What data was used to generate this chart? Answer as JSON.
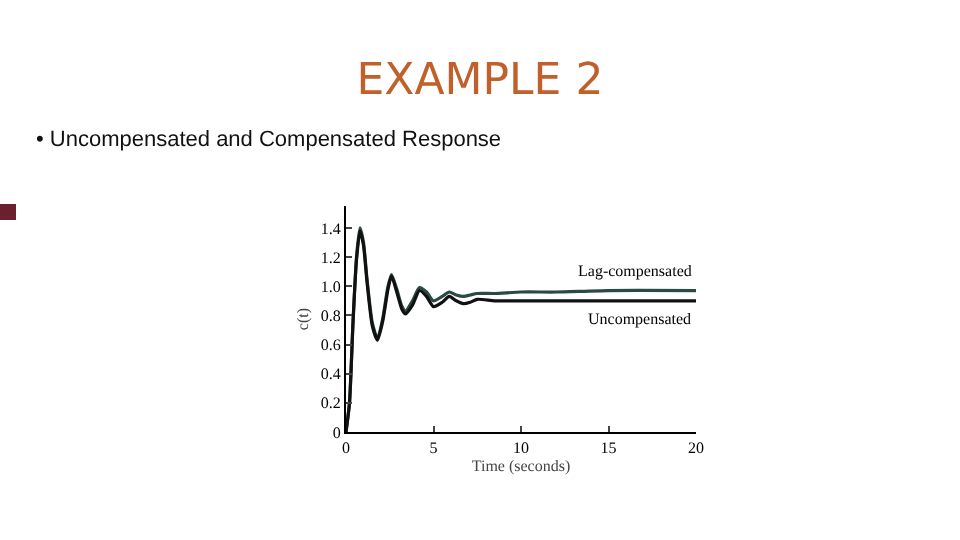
{
  "chart_data": {
    "type": "line",
    "title": "EXAMPLE 2",
    "subtitle": "• Uncompensated and Compensated Response",
    "xlabel": "Time (seconds)",
    "ylabel": "c(t)",
    "series": [
      {
        "name": "Lag-compensated",
        "color": "#2a4a44",
        "x": [
          0,
          0.2,
          0.4,
          0.6,
          0.8,
          1.0,
          1.2,
          1.5,
          1.8,
          2.1,
          2.4,
          2.6,
          2.9,
          3.2,
          3.4,
          3.8,
          4.2,
          4.6,
          5.0,
          5.5,
          5.9,
          6.3,
          6.7,
          7.1,
          7.5,
          8.5,
          10,
          12,
          15,
          20
        ],
        "values": [
          0,
          0.2,
          0.75,
          1.2,
          1.4,
          1.3,
          1.05,
          0.75,
          0.64,
          0.78,
          1.0,
          1.08,
          0.98,
          0.86,
          0.83,
          0.9,
          0.99,
          0.96,
          0.9,
          0.93,
          0.96,
          0.94,
          0.93,
          0.94,
          0.95,
          0.95,
          0.96,
          0.96,
          0.97,
          0.97
        ]
      },
      {
        "name": "Uncompensated",
        "color": "#111111",
        "x": [
          0,
          0.2,
          0.4,
          0.6,
          0.8,
          1.0,
          1.2,
          1.5,
          1.8,
          2.1,
          2.4,
          2.6,
          2.9,
          3.2,
          3.4,
          3.8,
          4.2,
          4.6,
          5.0,
          5.5,
          5.9,
          6.3,
          6.7,
          7.1,
          7.5,
          8.5,
          10,
          12,
          15,
          20
        ],
        "values": [
          0,
          0.2,
          0.75,
          1.18,
          1.38,
          1.28,
          1.03,
          0.73,
          0.63,
          0.76,
          0.98,
          1.07,
          0.96,
          0.84,
          0.81,
          0.87,
          0.97,
          0.93,
          0.86,
          0.89,
          0.93,
          0.9,
          0.88,
          0.89,
          0.91,
          0.9,
          0.9,
          0.9,
          0.9,
          0.9
        ]
      }
    ],
    "xlim": [
      0,
      20
    ],
    "xticks": [
      0,
      5,
      10,
      15,
      20
    ],
    "ylim": [
      0,
      1.55
    ],
    "yticks": [
      0,
      0.2,
      0.4,
      0.6,
      {
        "value": 0.8,
        "label": "0.8"
      },
      {
        "value": 1,
        "label": "1.0"
      },
      1.2,
      1.4
    ],
    "grid": false,
    "legend": false,
    "marker": "none",
    "line_style": "solid"
  }
}
